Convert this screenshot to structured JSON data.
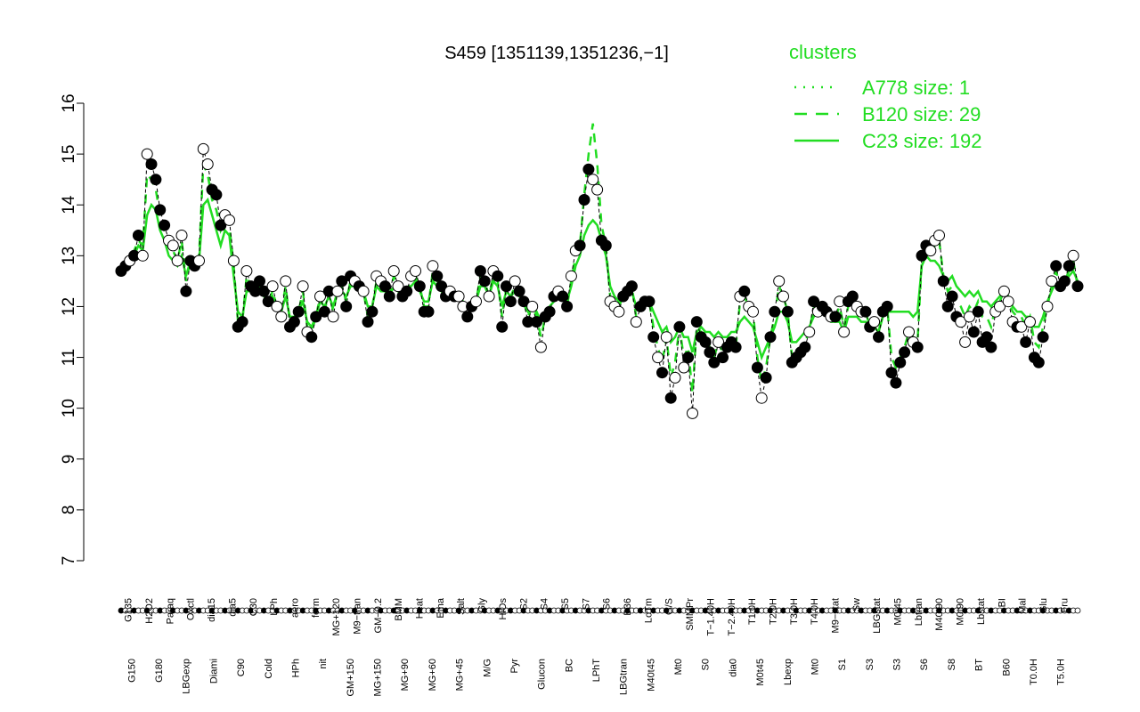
{
  "chart_data": {
    "type": "line",
    "title": "S459 [1351139,1351236,−1]",
    "xlabel": "",
    "ylabel": "",
    "ylim": [
      7,
      16
    ],
    "yticks": [
      7,
      8,
      9,
      10,
      11,
      12,
      13,
      14,
      15,
      16
    ],
    "x_axis_labels_top": [
      "G135",
      "H2O2",
      "Paraq",
      "Oxctl",
      "dia15",
      "dia5",
      "C30",
      "LPh",
      "aero",
      "ferm",
      "MG+120",
      "M9−tran",
      "GM−0.2",
      "BMM",
      "Heat",
      "Etha",
      "Salt",
      "Gly",
      "HiOs",
      "S2",
      "S4",
      "S5",
      "S7",
      "S6",
      "B36",
      "LoTm",
      "G/S",
      "SMMPr",
      "T−1.40H",
      "T−2.40H",
      "T1.0H",
      "T2.0H",
      "T3.0H",
      "T4.0H",
      "M9−stat",
      "Sw",
      "LBGstat",
      "M0t45",
      "Lbtran",
      "M40t90",
      "M0t90",
      "Lbstat",
      "BI",
      "Mal",
      "Glu",
      "Fru"
    ],
    "x_axis_labels_bottom": [
      "G150",
      "G180",
      "LBGexp",
      "Diami",
      "C90",
      "Cold",
      "HPh",
      "nit",
      "GM+150",
      "MG+150",
      "MG+90",
      "MG+60",
      "MG+45",
      "M/G",
      "Pyr",
      "Glucon",
      "BC",
      "LPhT",
      "LBGtran",
      "M40t45",
      "Mt0",
      "S0",
      "dia0",
      "M0t45",
      "Lbexp",
      "Mt0",
      "S1",
      "S3",
      "S3",
      "S6",
      "S8",
      "BT",
      "B60",
      "T0.0H",
      "T5.0H"
    ],
    "legend": {
      "title": "clusters",
      "position": "top-right",
      "entries": [
        {
          "label": "A778 size: 1",
          "style": "dotted"
        },
        {
          "label": "B120 size: 29",
          "style": "dashed"
        },
        {
          "label": "C23 size: 192",
          "style": "solid"
        }
      ]
    },
    "colors": {
      "line": "#22dd22",
      "point_fill_open": "#ffffff",
      "point_fill_closed": "#000000"
    },
    "series": [
      {
        "name": "points",
        "values": [
          12.7,
          12.8,
          12.9,
          13.0,
          13.4,
          13.0,
          15.0,
          14.8,
          14.5,
          13.9,
          13.6,
          13.3,
          13.2,
          12.9,
          13.4,
          12.3,
          12.9,
          12.8,
          12.9,
          15.1,
          14.8,
          14.3,
          14.2,
          13.6,
          13.8,
          13.7,
          12.9,
          11.6,
          11.7,
          12.7,
          12.4,
          12.3,
          12.5,
          12.3,
          12.1,
          12.4,
          12.0,
          11.8,
          12.5,
          11.6,
          11.7,
          11.9,
          12.4,
          11.5,
          11.4,
          11.8,
          12.2,
          11.9,
          12.3,
          11.8,
          12.3,
          12.5,
          12.0,
          12.6,
          12.5,
          12.4,
          12.3,
          11.7,
          11.9,
          12.6,
          12.5,
          12.4,
          12.2,
          12.7,
          12.4,
          12.2,
          12.3,
          12.6,
          12.7,
          12.4,
          11.9,
          11.9,
          12.8,
          12.6,
          12.4,
          12.2,
          12.3,
          12.2,
          12.2,
          12.0,
          11.8,
          12.0,
          12.1,
          12.7,
          12.5,
          12.2,
          12.7,
          12.6,
          11.6,
          12.4,
          12.1,
          12.5,
          12.3,
          12.1,
          11.7,
          12.0,
          11.7,
          11.2,
          11.8,
          11.9,
          12.2,
          12.3,
          12.2,
          12.0,
          12.6,
          13.1,
          13.2,
          14.1,
          14.7,
          14.5,
          14.3,
          13.3,
          13.2,
          12.1,
          12.0,
          11.9,
          12.2,
          12.3,
          12.4,
          11.7,
          12.0,
          12.1,
          12.1,
          11.4,
          11.0,
          10.7,
          11.4,
          10.2,
          10.6,
          11.6,
          10.8,
          11.0,
          9.9,
          11.7,
          11.4,
          11.3,
          11.1,
          10.9,
          11.3,
          11.0,
          11.2,
          11.3,
          11.2,
          12.2,
          12.3,
          12.0,
          11.9,
          10.8,
          10.2,
          10.6,
          11.4,
          11.9,
          12.5,
          12.2,
          11.9,
          10.9,
          11.0,
          11.1,
          11.2,
          11.5,
          12.1,
          11.9,
          12.0,
          11.9,
          11.8,
          11.8,
          12.1,
          11.5,
          12.1,
          12.2,
          12.0,
          11.9,
          11.9,
          11.6,
          11.7,
          11.4,
          11.9,
          12.0,
          10.7,
          10.5,
          10.9,
          11.1,
          11.5,
          11.3,
          11.2,
          13.0,
          13.2,
          13.1,
          13.3,
          13.4,
          12.5,
          12.0,
          12.2,
          11.8,
          11.7,
          11.3,
          11.8,
          11.5,
          11.9,
          11.3,
          11.4,
          11.2,
          11.9,
          12.0,
          12.3,
          12.1,
          11.7,
          11.6,
          11.6,
          11.3,
          11.7,
          11.0,
          10.9,
          11.4,
          12.0,
          12.5,
          12.8,
          12.4,
          12.5,
          12.8,
          13.0,
          12.4
        ],
        "filled": [
          1,
          1,
          0,
          1,
          1,
          0,
          0,
          1,
          1,
          1,
          1,
          0,
          0,
          0,
          0,
          1,
          1,
          1,
          0,
          0,
          0,
          1,
          1,
          1,
          0,
          0,
          0,
          1,
          1,
          0,
          1,
          1,
          1,
          1,
          1,
          0,
          0,
          0,
          0,
          1,
          1,
          1,
          0,
          0,
          1,
          1,
          0,
          1,
          1,
          0,
          0,
          1,
          1,
          1,
          0,
          1,
          0,
          1,
          1,
          0,
          0,
          1,
          1,
          0,
          0,
          1,
          1,
          0,
          0,
          1,
          1,
          1,
          0,
          1,
          1,
          1,
          0,
          1,
          0,
          0,
          1,
          1,
          0,
          1,
          1,
          0,
          0,
          1,
          1,
          1,
          1,
          0,
          1,
          1,
          1,
          0,
          1,
          0,
          1,
          1,
          1,
          0,
          1,
          1,
          0,
          0,
          1,
          1,
          1,
          0,
          0,
          1,
          1,
          0,
          0,
          0,
          1,
          1,
          1,
          0,
          1,
          1,
          1,
          1,
          0,
          1,
          0,
          1,
          0,
          1,
          0,
          1,
          0,
          1,
          1,
          1,
          1,
          1,
          0,
          1,
          1,
          1,
          1,
          0,
          1,
          0,
          0,
          1,
          0,
          1,
          1,
          1,
          0,
          0,
          1,
          1,
          1,
          1,
          1,
          0,
          1,
          0,
          1,
          1,
          0,
          1,
          0,
          0,
          1,
          1,
          0,
          0,
          1,
          1,
          0,
          1,
          1,
          1,
          1,
          1,
          1,
          1,
          0,
          0,
          1,
          1,
          1,
          0,
          0,
          0,
          1,
          1,
          1,
          1,
          0,
          0,
          0,
          1,
          1,
          1,
          1,
          1,
          0,
          0,
          0,
          0,
          0,
          1,
          0,
          1,
          0,
          1,
          1,
          1,
          0,
          0,
          1,
          1,
          1,
          1,
          0,
          1,
          1,
          1,
          0,
          1,
          0,
          1
        ]
      },
      {
        "name": "C23 size: 192",
        "values": [
          12.8,
          12.85,
          12.9,
          13.0,
          13.2,
          13.1,
          13.8,
          14.0,
          13.9,
          13.5,
          13.3,
          13.0,
          12.9,
          12.8,
          13.0,
          12.6,
          12.9,
          12.8,
          12.9,
          14.0,
          14.1,
          13.8,
          13.5,
          13.2,
          13.5,
          13.4,
          12.6,
          11.9,
          11.8,
          12.3,
          12.3,
          12.3,
          12.4,
          12.2,
          12.1,
          12.2,
          12.0,
          11.9,
          12.2,
          11.8,
          11.8,
          11.9,
          12.1,
          11.7,
          11.6,
          11.8,
          12.1,
          12.0,
          12.2,
          12.0,
          12.3,
          12.3,
          12.2,
          12.4,
          12.4,
          12.3,
          12.3,
          12.0,
          12.0,
          12.4,
          12.3,
          12.3,
          12.2,
          12.4,
          12.3,
          12.2,
          12.3,
          12.4,
          12.5,
          12.3,
          12.1,
          12.1,
          12.5,
          12.4,
          12.3,
          12.2,
          12.3,
          12.2,
          12.2,
          12.1,
          12.0,
          12.1,
          12.1,
          12.4,
          12.4,
          12.2,
          12.5,
          12.4,
          12.0,
          12.3,
          12.2,
          12.3,
          12.2,
          12.1,
          11.9,
          12.0,
          11.9,
          11.7,
          11.9,
          12.0,
          12.1,
          12.2,
          12.2,
          12.1,
          12.4,
          12.8,
          13.0,
          13.4,
          13.6,
          13.7,
          13.6,
          13.3,
          13.0,
          12.4,
          12.2,
          12.1,
          12.2,
          12.3,
          12.3,
          12.0,
          12.1,
          12.1,
          12.1,
          11.9,
          11.7,
          11.5,
          11.6,
          11.3,
          11.4,
          11.6,
          11.4,
          11.4,
          11.1,
          11.5,
          11.6,
          11.5,
          11.5,
          11.4,
          11.5,
          11.4,
          11.4,
          11.5,
          11.5,
          11.7,
          11.8,
          11.7,
          11.6,
          11.3,
          11.0,
          11.2,
          11.4,
          11.6,
          11.9,
          11.9,
          11.7,
          11.3,
          11.3,
          11.4,
          11.5,
          11.6,
          11.8,
          11.9,
          11.9,
          11.8,
          11.7,
          11.7,
          11.7,
          11.5,
          11.8,
          11.8,
          11.8,
          11.7,
          11.7,
          11.6,
          11.6,
          11.5,
          11.8,
          11.9,
          11.9,
          11.9,
          11.9,
          11.9,
          11.9,
          11.8,
          11.9,
          12.8,
          13.0,
          12.9,
          12.9,
          12.8,
          12.6,
          12.5,
          12.6,
          12.4,
          12.3,
          12.2,
          12.3,
          12.2,
          12.3,
          12.1,
          12.1,
          12.0,
          12.1,
          12.2,
          12.3,
          12.2,
          12.0,
          11.9,
          11.9,
          11.8,
          11.8,
          11.6,
          11.6,
          11.8,
          12.1,
          12.3,
          12.5,
          12.4,
          12.5,
          12.6,
          12.7,
          12.5
        ]
      },
      {
        "name": "B120 size: 29",
        "values": [
          12.8,
          12.9,
          13.0,
          13.1,
          13.3,
          13.2,
          14.6,
          14.5,
          14.3,
          13.8,
          13.5,
          13.2,
          13.1,
          12.9,
          13.3,
          12.5,
          12.9,
          12.9,
          13.0,
          14.8,
          14.6,
          14.1,
          13.9,
          13.5,
          13.7,
          13.6,
          12.8,
          11.7,
          11.7,
          12.6,
          12.4,
          12.3,
          12.5,
          12.3,
          12.1,
          12.3,
          12.0,
          11.9,
          12.4,
          11.7,
          11.7,
          11.9,
          12.3,
          11.6,
          11.5,
          11.8,
          12.2,
          11.9,
          12.3,
          11.9,
          12.3,
          12.4,
          12.1,
          12.5,
          12.5,
          12.4,
          12.3,
          11.8,
          12.0,
          12.5,
          12.4,
          12.4,
          12.2,
          12.6,
          12.4,
          12.2,
          12.3,
          12.5,
          12.6,
          12.4,
          12.0,
          12.0,
          12.7,
          12.5,
          12.4,
          12.2,
          12.3,
          12.2,
          12.2,
          12.1,
          11.9,
          12.0,
          12.1,
          12.6,
          12.5,
          12.2,
          12.6,
          12.5,
          11.8,
          12.4,
          12.2,
          12.4,
          12.3,
          12.1,
          11.8,
          12.0,
          11.8,
          11.4,
          11.8,
          11.9,
          12.2,
          12.3,
          12.2,
          12.0,
          12.5,
          13.0,
          13.2,
          14.2,
          15.0,
          15.6,
          14.8,
          13.6,
          13.2,
          12.2,
          12.1,
          12.0,
          12.2,
          12.3,
          12.4,
          11.8,
          12.0,
          12.1,
          12.1,
          11.6,
          11.2,
          10.9,
          11.4,
          10.6,
          10.9,
          11.6,
          11.0,
          11.2,
          10.3,
          11.6,
          11.5,
          11.4,
          11.2,
          11.0,
          11.3,
          11.1,
          11.2,
          11.3,
          11.2,
          12.1,
          12.2,
          12.0,
          11.9,
          11.0,
          10.5,
          10.8,
          11.4,
          11.8,
          12.4,
          12.2,
          11.9,
          11.0,
          11.1,
          11.2,
          11.3,
          11.5,
          12.0,
          11.9,
          12.0,
          11.9,
          11.8,
          11.8,
          12.0,
          11.6,
          12.0,
          12.1,
          12.0,
          11.9,
          11.9,
          11.6,
          11.7,
          11.5,
          11.9,
          12.0,
          11.0,
          10.8,
          11.0,
          11.2,
          11.5,
          11.4,
          11.3,
          12.9,
          13.1,
          13.0,
          13.2,
          13.3,
          12.6,
          12.3,
          12.4,
          12.1,
          12.0,
          11.8,
          12.0,
          11.9,
          12.1,
          11.8,
          11.8,
          11.6,
          12.0,
          12.1,
          12.3,
          12.1,
          11.9,
          11.8,
          11.8,
          11.6,
          11.8,
          11.3,
          11.2,
          11.6,
          12.0,
          12.4,
          12.7,
          12.4,
          12.5,
          12.7,
          12.9,
          12.4
        ]
      }
    ]
  }
}
